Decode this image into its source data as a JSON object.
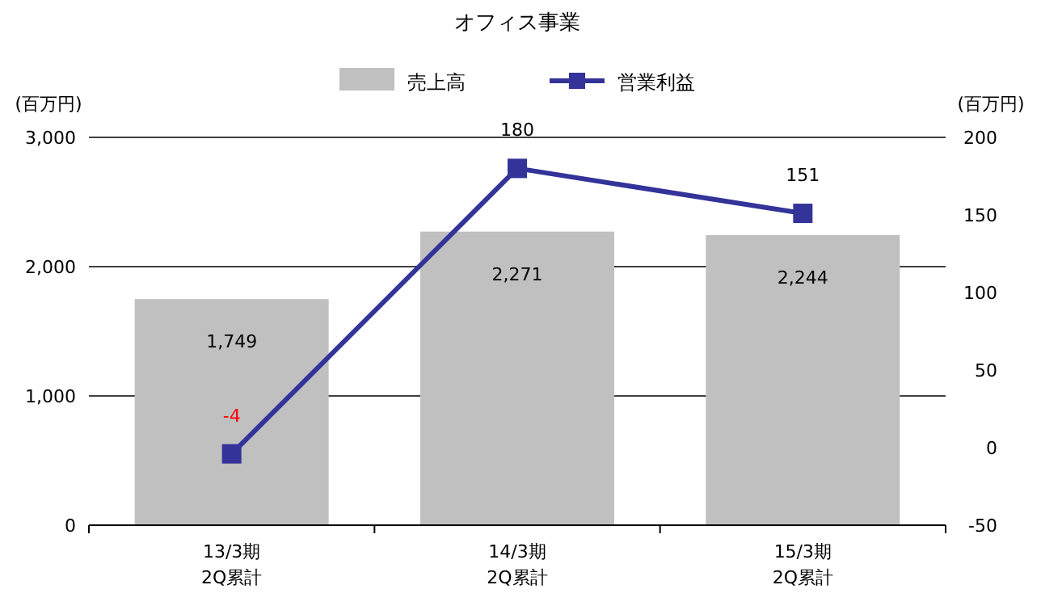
{
  "chart_data": {
    "type": "bar",
    "title": "オフィス事業",
    "categories": [
      "13/3期\n2Q累計",
      "14/3期\n2Q累計",
      "15/3期\n2Q累計"
    ],
    "ylabel": "(百万円)",
    "y2label": "(百万円)",
    "ylim": [
      0,
      3000
    ],
    "yticks": [
      {
        "value": 0,
        "label": "0"
      },
      {
        "value": 1000,
        "label": "1,000"
      },
      {
        "value": 2000,
        "label": "2,000"
      },
      {
        "value": 3000,
        "label": "3,000"
      }
    ],
    "y2lim": [
      -50,
      200
    ],
    "y2ticks": [
      -50,
      0,
      50,
      100,
      150,
      200
    ],
    "series": [
      {
        "name": "売上高",
        "color": "#c0c0c0",
        "values": [
          1749,
          2271,
          2244
        ],
        "value_labels": [
          "1,749",
          "2,271",
          "2,244"
        ]
      },
      {
        "name": "営業利益",
        "type": "line",
        "axis": "y2",
        "color": "#333399",
        "marker": "square",
        "values": [
          -4,
          180,
          151
        ],
        "value_labels": [
          "-4",
          "180",
          "151"
        ]
      }
    ],
    "grid": "y",
    "legend": "top"
  }
}
